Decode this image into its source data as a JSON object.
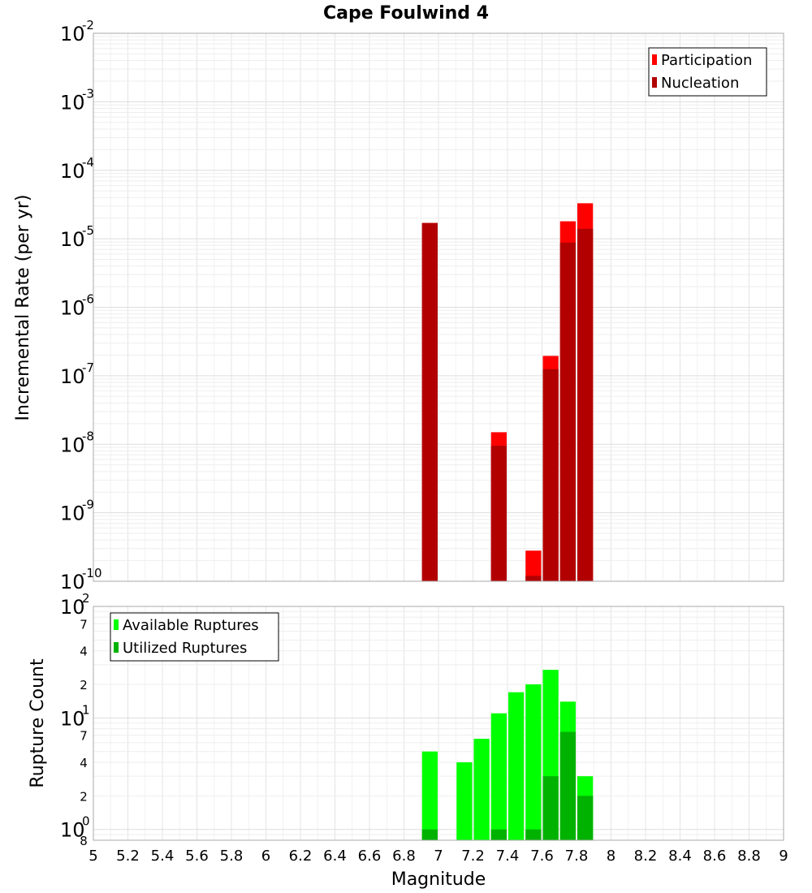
{
  "chart_data": {
    "title": "Cape Foulwind 4",
    "xlabel": "Magnitude",
    "x_ticks": [
      "5",
      "5.2",
      "5.4",
      "5.6",
      "5.8",
      "6",
      "6.2",
      "6.4",
      "6.6",
      "6.8",
      "7",
      "7.2",
      "7.4",
      "7.6",
      "7.8",
      "8",
      "8.2",
      "8.4",
      "8.6",
      "8.8",
      "9"
    ],
    "xlim": [
      5,
      9
    ],
    "bin_width": 0.1,
    "panels": [
      {
        "type": "bar",
        "scale": "log",
        "ylabel": "Incremental Rate (per yr)",
        "ylim": [
          1e-10,
          0.01
        ],
        "decade_base": "10",
        "decade_exponents": [
          "-2",
          "-3",
          "-4",
          "-5",
          "-6",
          "-7",
          "-8",
          "-9",
          "-10"
        ],
        "legend": [
          {
            "name": "Participation",
            "color": "#ff0000"
          },
          {
            "name": "Nucleation",
            "color": "#b20000"
          }
        ],
        "series": [
          {
            "name": "Participation",
            "color": "#ff0000",
            "x": [
              6.95,
              7.35,
              7.55,
              7.65,
              7.75,
              7.85
            ],
            "values": [
              1.7e-05,
              1.5e-08,
              2.8e-10,
              1.95e-07,
              1.8e-05,
              3.3e-05
            ]
          },
          {
            "name": "Nucleation",
            "color": "#b20000",
            "x": [
              6.95,
              7.35,
              7.55,
              7.65,
              7.75,
              7.85
            ],
            "values": [
              1.7e-05,
              9.5e-09,
              1.2e-10,
              1.25e-07,
              8.8e-06,
              1.4e-05
            ]
          }
        ]
      },
      {
        "type": "bar",
        "scale": "log",
        "ylabel": "Rupture Count",
        "ylim": [
          0.8,
          100
        ],
        "decade_base": "10",
        "decade_exponents": [
          "2",
          "1",
          "0"
        ],
        "minor_labels": [
          "7",
          "4",
          "2",
          "7",
          "4",
          "2",
          "8"
        ],
        "legend": [
          {
            "name": "Available Ruptures",
            "color": "#00ff00"
          },
          {
            "name": "Utilized Ruptures",
            "color": "#00b200"
          }
        ],
        "series": [
          {
            "name": "Available Ruptures",
            "color": "#00ff00",
            "x": [
              6.95,
              7.15,
              7.25,
              7.35,
              7.45,
              7.55,
              7.65,
              7.75,
              7.85
            ],
            "values": [
              5,
              4,
              6.5,
              11,
              17,
              20,
              27,
              14,
              3
            ]
          },
          {
            "name": "Utilized Ruptures",
            "color": "#00b200",
            "x": [
              6.95,
              7.15,
              7.25,
              7.35,
              7.45,
              7.55,
              7.65,
              7.75,
              7.85
            ],
            "values": [
              1,
              0,
              0,
              1,
              0,
              1,
              3,
              7.5,
              2
            ]
          }
        ]
      }
    ]
  }
}
